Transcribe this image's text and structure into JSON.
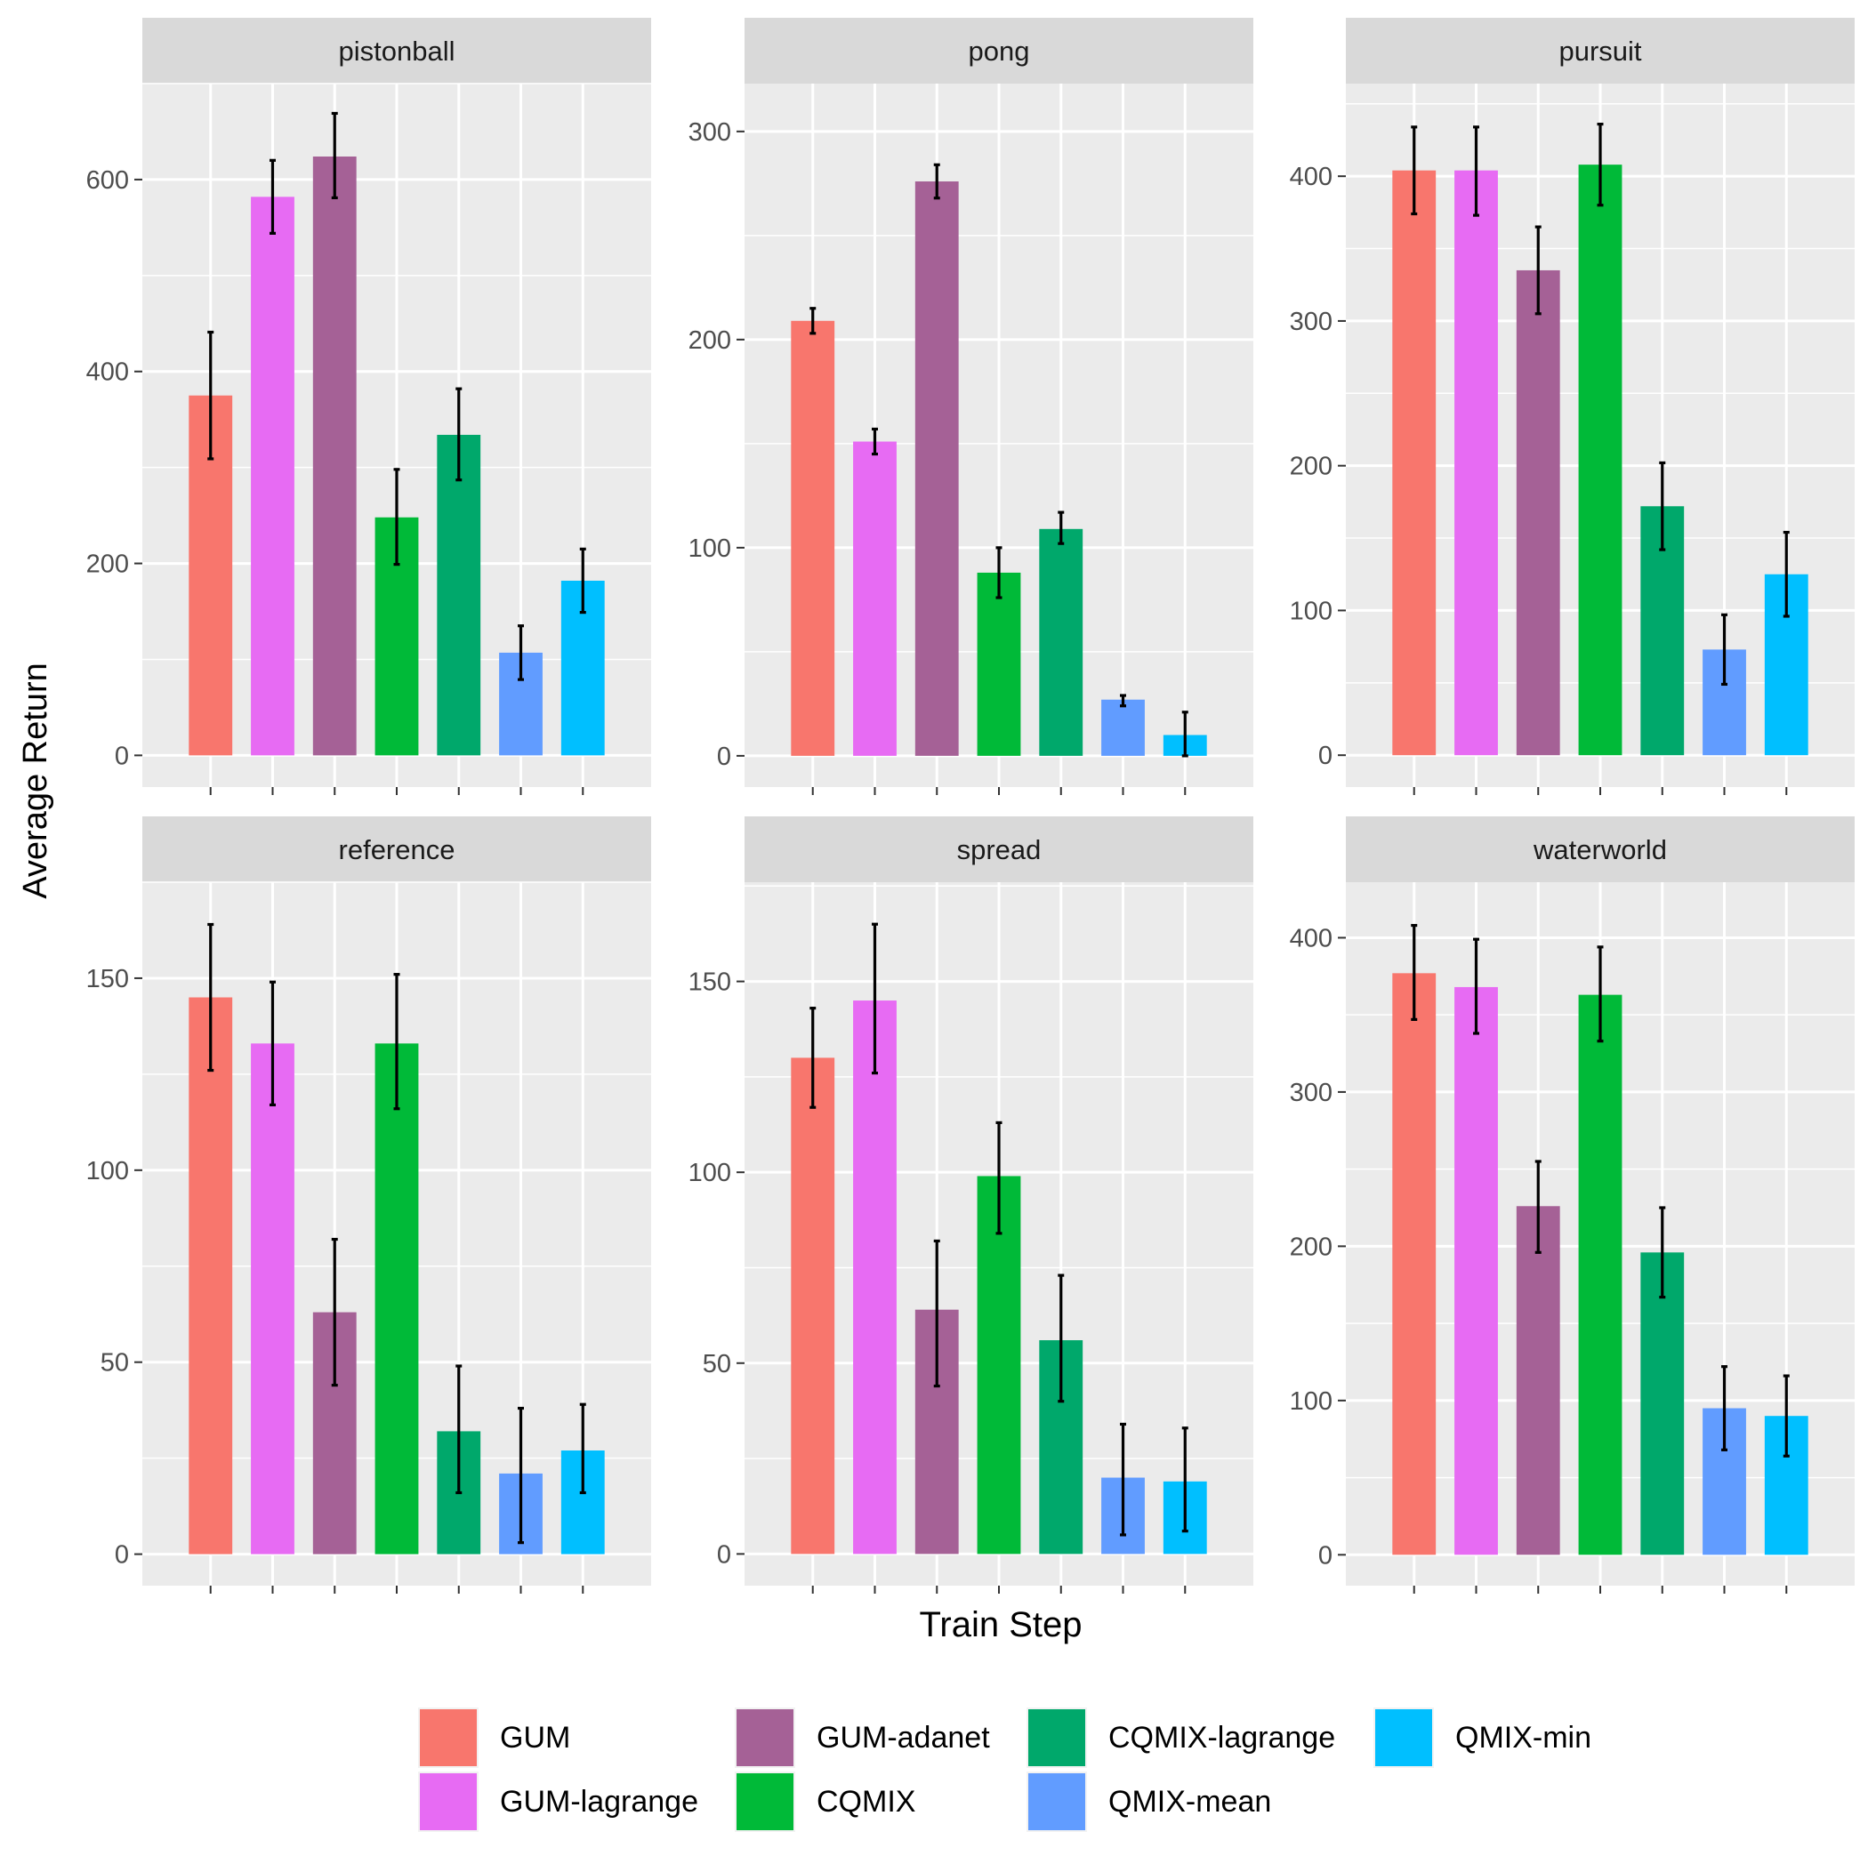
{
  "chart_data": {
    "type": "bar",
    "layout": "facet-grid-2x3",
    "xlabel": "Train Step",
    "ylabel": "Average Return",
    "series": [
      {
        "name": "GUM",
        "color": "#F8766D"
      },
      {
        "name": "GUM-lagrange",
        "color": "#E76BF3"
      },
      {
        "name": "GUM-adanet",
        "color": "#A56196"
      },
      {
        "name": "CQMIX",
        "color": "#00BA38"
      },
      {
        "name": "CQMIX-lagrange",
        "color": "#00A86B"
      },
      {
        "name": "QMIX-mean",
        "color": "#619CFF"
      },
      {
        "name": "QMIX-min",
        "color": "#00BFFF"
      }
    ],
    "panels": [
      {
        "title": "pistonball",
        "ylim": [
          -33,
          700
        ],
        "yticks": [
          0,
          200,
          400,
          600
        ],
        "values": [
          375,
          582,
          624,
          248,
          334,
          107,
          182
        ],
        "err_low": [
          309,
          544,
          581,
          199,
          287,
          79,
          149
        ],
        "err_high": [
          441,
          620,
          669,
          298,
          382,
          135,
          215
        ]
      },
      {
        "title": "pong",
        "ylim": [
          -15,
          323
        ],
        "yticks": [
          0,
          100,
          200,
          300
        ],
        "values": [
          209,
          151,
          276,
          88,
          109,
          27,
          10
        ],
        "err_low": [
          203,
          145,
          268,
          76,
          102,
          24,
          0
        ],
        "err_high": [
          215,
          157,
          284,
          100,
          117,
          29,
          21
        ]
      },
      {
        "title": "pursuit",
        "ylim": [
          -22,
          464
        ],
        "yticks": [
          0,
          100,
          200,
          300,
          400
        ],
        "values": [
          404,
          404,
          335,
          408,
          172,
          73,
          125
        ],
        "err_low": [
          374,
          373,
          305,
          380,
          142,
          49,
          96
        ],
        "err_high": [
          434,
          434,
          365,
          436,
          202,
          97,
          154
        ]
      },
      {
        "title": "reference",
        "ylim": [
          -8.2,
          175
        ],
        "yticks": [
          0,
          50,
          100,
          150
        ],
        "values": [
          145,
          133,
          63,
          133,
          32,
          21,
          27
        ],
        "err_low": [
          126,
          117,
          44,
          116,
          16,
          3,
          16
        ],
        "err_high": [
          164,
          149,
          82,
          151,
          49,
          38,
          39
        ]
      },
      {
        "title": "spread",
        "ylim": [
          -8.3,
          176
        ],
        "yticks": [
          0,
          50,
          100,
          150
        ],
        "values": [
          130,
          145,
          64,
          99,
          56,
          20,
          19
        ],
        "err_low": [
          117,
          126,
          44,
          84,
          40,
          5,
          6
        ],
        "err_high": [
          143,
          165,
          82,
          113,
          73,
          34,
          33
        ]
      },
      {
        "title": "waterworld",
        "ylim": [
          -20,
          436
        ],
        "yticks": [
          0,
          100,
          200,
          300,
          400
        ],
        "values": [
          377,
          368,
          226,
          363,
          196,
          95,
          90
        ],
        "err_low": [
          347,
          338,
          196,
          333,
          167,
          68,
          64
        ],
        "err_high": [
          408,
          399,
          255,
          394,
          225,
          122,
          116
        ]
      }
    ]
  }
}
